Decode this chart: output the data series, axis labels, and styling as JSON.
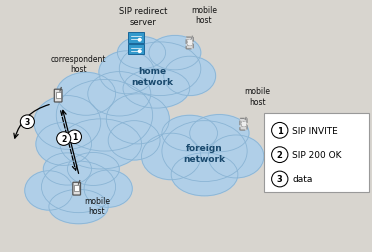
{
  "bg_color": "#d8d5cf",
  "cloud_color": "#b0cfe8",
  "cloud_edge_color": "#8ab4d4",
  "cloud_light": "#c8dff0",
  "legend_items": [
    "SIP INVITE",
    "SIP 200 OK",
    "data"
  ],
  "home_network_label": "home\nnetwork",
  "foreign_network_label": "foreign\nnetwork",
  "correspondent_host_label": "correspondent\nhost",
  "mobile_host_label": "mobile\nhost",
  "sip_redirect_label": "SIP redirect\nserver",
  "server_color": "#3399cc",
  "server_dark": "#1a6699"
}
